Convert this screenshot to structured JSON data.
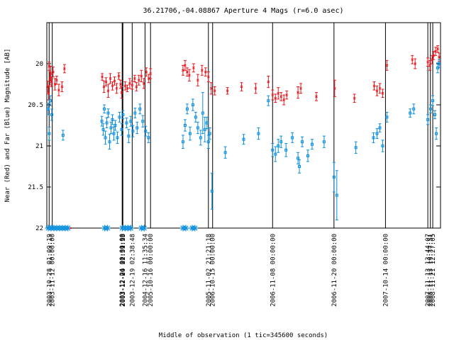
{
  "chart_data": {
    "type": "scatter",
    "title": "36.21706,-04.08867   Aperture 4 Mags (r=6.0 asec)",
    "xlabel": "Middle of observation (1 tic=345600 seconds)",
    "ylabel": "Near (Red) and Far (Blue) Magnitude [AB]",
    "x_unit": "tic",
    "xlim": [
      0,
      5580
    ],
    "ylim": [
      22,
      19.5
    ],
    "yticks": [
      20,
      20.5,
      21,
      21.5,
      22
    ],
    "ytick_labels": [
      "20",
      "20.5",
      "21",
      "21.5",
      "22"
    ],
    "grid": false,
    "vertical_lines": [
      {
        "x": 33,
        "label": "2003-10-28 01:09:19"
      },
      {
        "x": 77,
        "label": "2003-11-12 00:00:00"
      },
      {
        "x": 1068,
        "label": "2003-12-24 00:00:00"
      },
      {
        "x": 1074,
        "label": "2003-12-24 01:31:16"
      },
      {
        "x": 1078,
        "label": "2003-12-09 22:59:53"
      },
      {
        "x": 1210,
        "label": "2003-12-19 02:38:48"
      },
      {
        "x": 1392,
        "label": "2004-12-16 11:35:34"
      },
      {
        "x": 1470,
        "label": "2005-10-16 00:00:00"
      },
      {
        "x": 2290,
        "label": "2005-11-02 21:21:18"
      },
      {
        "x": 2350,
        "label": "2006-10-15 00:00:00"
      },
      {
        "x": 3200,
        "label": "2006-11-08 00:00:00"
      },
      {
        "x": 4070,
        "label": "2006-11-20 00:00:00"
      },
      {
        "x": 4800,
        "label": "2007-10-14 00:00:00"
      },
      {
        "x": 5400,
        "label": "2007-11-13 13:44:07"
      },
      {
        "x": 5436,
        "label": "2008-11-13 19:37:51"
      },
      {
        "x": 5470,
        "label": "2008-11-21 12:27:05"
      }
    ],
    "series": [
      {
        "name": "Near",
        "color": "#e8151b",
        "marker": "x",
        "points": [
          {
            "x": 15,
            "y": 20.28,
            "e": 0.07
          },
          {
            "x": 25,
            "y": 20.36,
            "e": 0.08
          },
          {
            "x": 33,
            "y": 20.03,
            "e": 0.05
          },
          {
            "x": 45,
            "y": 20.18,
            "e": 0.08
          },
          {
            "x": 55,
            "y": 20.12,
            "e": 0.09
          },
          {
            "x": 68,
            "y": 20.22,
            "e": 0.06
          },
          {
            "x": 90,
            "y": 20.1,
            "e": 0.06
          },
          {
            "x": 115,
            "y": 20.25,
            "e": 0.07
          },
          {
            "x": 140,
            "y": 20.2,
            "e": 0.05
          },
          {
            "x": 170,
            "y": 20.32,
            "e": 0.07
          },
          {
            "x": 215,
            "y": 20.28,
            "e": 0.06
          },
          {
            "x": 250,
            "y": 20.06,
            "e": 0.05
          },
          {
            "x": 785,
            "y": 20.16,
            "e": 0.04
          },
          {
            "x": 810,
            "y": 20.28,
            "e": 0.07
          },
          {
            "x": 840,
            "y": 20.22,
            "e": 0.05
          },
          {
            "x": 870,
            "y": 20.33,
            "e": 0.08
          },
          {
            "x": 900,
            "y": 20.18,
            "e": 0.06
          },
          {
            "x": 930,
            "y": 20.27,
            "e": 0.05
          },
          {
            "x": 960,
            "y": 20.21,
            "e": 0.05
          },
          {
            "x": 990,
            "y": 20.3,
            "e": 0.06
          },
          {
            "x": 1020,
            "y": 20.15,
            "e": 0.04
          },
          {
            "x": 1045,
            "y": 20.25,
            "e": 0.05
          },
          {
            "x": 1060,
            "y": 20.35,
            "e": 0.07
          },
          {
            "x": 1110,
            "y": 20.27,
            "e": 0.05
          },
          {
            "x": 1140,
            "y": 20.3,
            "e": 0.04
          },
          {
            "x": 1175,
            "y": 20.24,
            "e": 0.06
          },
          {
            "x": 1210,
            "y": 20.26,
            "e": 0.05
          },
          {
            "x": 1245,
            "y": 20.18,
            "e": 0.04
          },
          {
            "x": 1270,
            "y": 20.28,
            "e": 0.05
          },
          {
            "x": 1305,
            "y": 20.2,
            "e": 0.06
          },
          {
            "x": 1340,
            "y": 20.15,
            "e": 0.07
          },
          {
            "x": 1375,
            "y": 20.24,
            "e": 0.06
          },
          {
            "x": 1410,
            "y": 20.1,
            "e": 0.05
          },
          {
            "x": 1445,
            "y": 20.18,
            "e": 0.05
          },
          {
            "x": 1470,
            "y": 20.12,
            "e": 0.06
          },
          {
            "x": 1930,
            "y": 20.08,
            "e": 0.06
          },
          {
            "x": 1960,
            "y": 20.02,
            "e": 0.06
          },
          {
            "x": 1990,
            "y": 20.1,
            "e": 0.05
          },
          {
            "x": 2020,
            "y": 20.14,
            "e": 0.07
          },
          {
            "x": 2080,
            "y": 20.05,
            "e": 0.05
          },
          {
            "x": 2140,
            "y": 20.2,
            "e": 0.07
          },
          {
            "x": 2200,
            "y": 20.08,
            "e": 0.06
          },
          {
            "x": 2250,
            "y": 20.1,
            "e": 0.05
          },
          {
            "x": 2290,
            "y": 20.16,
            "e": 0.06
          },
          {
            "x": 2330,
            "y": 20.3,
            "e": 0.07
          },
          {
            "x": 2380,
            "y": 20.33,
            "e": 0.05
          },
          {
            "x": 2560,
            "y": 20.33,
            "e": 0.04
          },
          {
            "x": 2760,
            "y": 20.28,
            "e": 0.05
          },
          {
            "x": 2960,
            "y": 20.3,
            "e": 0.06
          },
          {
            "x": 3140,
            "y": 20.22,
            "e": 0.07
          },
          {
            "x": 3200,
            "y": 20.38,
            "e": 0.06
          },
          {
            "x": 3240,
            "y": 20.42,
            "e": 0.05
          },
          {
            "x": 3280,
            "y": 20.36,
            "e": 0.07
          },
          {
            "x": 3320,
            "y": 20.4,
            "e": 0.05
          },
          {
            "x": 3360,
            "y": 20.44,
            "e": 0.06
          },
          {
            "x": 3400,
            "y": 20.38,
            "e": 0.05
          },
          {
            "x": 3560,
            "y": 20.35,
            "e": 0.07
          },
          {
            "x": 3600,
            "y": 20.3,
            "e": 0.06
          },
          {
            "x": 3820,
            "y": 20.4,
            "e": 0.05
          },
          {
            "x": 4080,
            "y": 20.3,
            "e": 0.1
          },
          {
            "x": 4360,
            "y": 20.42,
            "e": 0.05
          },
          {
            "x": 4640,
            "y": 20.27,
            "e": 0.05
          },
          {
            "x": 4680,
            "y": 20.33,
            "e": 0.06
          },
          {
            "x": 4720,
            "y": 20.3,
            "e": 0.06
          },
          {
            "x": 4760,
            "y": 20.36,
            "e": 0.05
          },
          {
            "x": 4820,
            "y": 20.02,
            "e": 0.06
          },
          {
            "x": 5180,
            "y": 19.95,
            "e": 0.05
          },
          {
            "x": 5220,
            "y": 20.0,
            "e": 0.06
          },
          {
            "x": 5400,
            "y": 19.98,
            "e": 0.05
          },
          {
            "x": 5430,
            "y": 20.02,
            "e": 0.06
          },
          {
            "x": 5460,
            "y": 19.95,
            "e": 0.05
          },
          {
            "x": 5480,
            "y": 19.9,
            "e": 0.05
          },
          {
            "x": 5510,
            "y": 19.85,
            "e": 0.05
          },
          {
            "x": 5540,
            "y": 19.82,
            "e": 0.04
          },
          {
            "x": 5560,
            "y": 19.92,
            "e": 0.05
          }
        ]
      },
      {
        "name": "Far",
        "color": "#0c8fdc",
        "marker": "square",
        "points": [
          {
            "x": 20,
            "y": 20.55,
            "e": 0.07
          },
          {
            "x": 35,
            "y": 20.85,
            "e": 0.08
          },
          {
            "x": 50,
            "y": 20.45,
            "e": 0.06
          },
          {
            "x": 70,
            "y": 20.62,
            "e": 0.07
          },
          {
            "x": 230,
            "y": 20.87,
            "e": 0.06
          },
          {
            "x": 780,
            "y": 20.7,
            "e": 0.06
          },
          {
            "x": 800,
            "y": 20.8,
            "e": 0.07
          },
          {
            "x": 815,
            "y": 20.55,
            "e": 0.05
          },
          {
            "x": 830,
            "y": 20.9,
            "e": 0.08
          },
          {
            "x": 850,
            "y": 20.72,
            "e": 0.06
          },
          {
            "x": 870,
            "y": 20.6,
            "e": 0.05
          },
          {
            "x": 890,
            "y": 20.95,
            "e": 0.09
          },
          {
            "x": 910,
            "y": 20.78,
            "e": 0.07
          },
          {
            "x": 930,
            "y": 20.68,
            "e": 0.06
          },
          {
            "x": 950,
            "y": 20.85,
            "e": 0.08
          },
          {
            "x": 970,
            "y": 20.75,
            "e": 0.06
          },
          {
            "x": 1000,
            "y": 20.9,
            "e": 0.07
          },
          {
            "x": 1030,
            "y": 20.65,
            "e": 0.06
          },
          {
            "x": 1060,
            "y": 20.8,
            "e": 0.07
          },
          {
            "x": 1080,
            "y": 20.62,
            "e": 0.05
          },
          {
            "x": 1130,
            "y": 20.72,
            "e": 0.06
          },
          {
            "x": 1160,
            "y": 20.88,
            "e": 0.08
          },
          {
            "x": 1190,
            "y": 20.7,
            "e": 0.06
          },
          {
            "x": 1220,
            "y": 20.82,
            "e": 0.07
          },
          {
            "x": 1250,
            "y": 20.6,
            "e": 0.06
          },
          {
            "x": 1280,
            "y": 20.78,
            "e": 0.07
          },
          {
            "x": 1320,
            "y": 20.55,
            "e": 0.06
          },
          {
            "x": 1360,
            "y": 20.7,
            "e": 0.07
          },
          {
            "x": 1400,
            "y": 20.82,
            "e": 0.06
          },
          {
            "x": 1440,
            "y": 20.9,
            "e": 0.06
          },
          {
            "x": 1930,
            "y": 20.95,
            "e": 0.08
          },
          {
            "x": 1960,
            "y": 20.75,
            "e": 0.07
          },
          {
            "x": 1990,
            "y": 20.55,
            "e": 0.06
          },
          {
            "x": 2030,
            "y": 20.85,
            "e": 0.08
          },
          {
            "x": 2070,
            "y": 20.5,
            "e": 0.07
          },
          {
            "x": 2110,
            "y": 20.65,
            "e": 0.06
          },
          {
            "x": 2140,
            "y": 20.78,
            "e": 0.07
          },
          {
            "x": 2180,
            "y": 20.9,
            "e": 0.09
          },
          {
            "x": 2210,
            "y": 20.6,
            "e": 0.25
          },
          {
            "x": 2240,
            "y": 20.8,
            "e": 0.15
          },
          {
            "x": 2270,
            "y": 20.72,
            "e": 0.07
          },
          {
            "x": 2290,
            "y": 20.95,
            "e": 0.08
          },
          {
            "x": 2310,
            "y": 20.85,
            "e": 0.07
          },
          {
            "x": 2340,
            "y": 21.55,
            "e": 0.22
          },
          {
            "x": 2530,
            "y": 21.08,
            "e": 0.07
          },
          {
            "x": 2790,
            "y": 20.92,
            "e": 0.06
          },
          {
            "x": 3000,
            "y": 20.85,
            "e": 0.07
          },
          {
            "x": 3140,
            "y": 20.45,
            "e": 0.06
          },
          {
            "x": 3200,
            "y": 21.05,
            "e": 0.08
          },
          {
            "x": 3240,
            "y": 21.1,
            "e": 0.09
          },
          {
            "x": 3280,
            "y": 21.0,
            "e": 0.08
          },
          {
            "x": 3320,
            "y": 20.95,
            "e": 0.07
          },
          {
            "x": 3390,
            "y": 21.05,
            "e": 0.08
          },
          {
            "x": 3480,
            "y": 20.9,
            "e": 0.06
          },
          {
            "x": 3560,
            "y": 21.15,
            "e": 0.07
          },
          {
            "x": 3580,
            "y": 21.25,
            "e": 0.08
          },
          {
            "x": 3620,
            "y": 20.95,
            "e": 0.06
          },
          {
            "x": 3700,
            "y": 21.12,
            "e": 0.07
          },
          {
            "x": 3760,
            "y": 20.98,
            "e": 0.06
          },
          {
            "x": 3930,
            "y": 20.95,
            "e": 0.07
          },
          {
            "x": 4070,
            "y": 21.38,
            "e": 0.18
          },
          {
            "x": 4110,
            "y": 21.6,
            "e": 0.3
          },
          {
            "x": 4380,
            "y": 21.02,
            "e": 0.07
          },
          {
            "x": 4630,
            "y": 20.9,
            "e": 0.06
          },
          {
            "x": 4680,
            "y": 20.85,
            "e": 0.06
          },
          {
            "x": 4720,
            "y": 20.78,
            "e": 0.05
          },
          {
            "x": 4760,
            "y": 21.0,
            "e": 0.07
          },
          {
            "x": 4820,
            "y": 20.65,
            "e": 0.06
          },
          {
            "x": 5150,
            "y": 20.6,
            "e": 0.05
          },
          {
            "x": 5200,
            "y": 20.55,
            "e": 0.06
          },
          {
            "x": 5400,
            "y": 20.68,
            "e": 0.06
          },
          {
            "x": 5440,
            "y": 20.55,
            "e": 0.05
          },
          {
            "x": 5470,
            "y": 20.45,
            "e": 0.06
          },
          {
            "x": 5500,
            "y": 20.62,
            "e": 0.05
          },
          {
            "x": 5520,
            "y": 20.85,
            "e": 0.07
          },
          {
            "x": 5540,
            "y": 20.05,
            "e": 0.06
          },
          {
            "x": 5560,
            "y": 20.0,
            "e": 0.05
          }
        ]
      }
    ],
    "baseline_markers": [
      {
        "x": 20,
        "color": "#0c8fdc"
      },
      {
        "x": 60,
        "color": "#0c8fdc"
      },
      {
        "x": 100,
        "color": "#0c8fdc"
      },
      {
        "x": 140,
        "color": "#0c8fdc"
      },
      {
        "x": 180,
        "color": "#0c8fdc"
      },
      {
        "x": 220,
        "color": "#0c8fdc"
      },
      {
        "x": 260,
        "color": "#0c8fdc"
      },
      {
        "x": 300,
        "color": "#0c8fdc"
      },
      {
        "x": 340,
        "color": "#e8151b"
      },
      {
        "x": 820,
        "color": "#0c8fdc"
      },
      {
        "x": 860,
        "color": "#0c8fdc"
      },
      {
        "x": 1070,
        "color": "#0c8fdc"
      },
      {
        "x": 1110,
        "color": "#0c8fdc"
      },
      {
        "x": 1150,
        "color": "#0c8fdc"
      },
      {
        "x": 1190,
        "color": "#0c8fdc"
      },
      {
        "x": 1340,
        "color": "#0c8fdc"
      },
      {
        "x": 1380,
        "color": "#0c8fdc"
      },
      {
        "x": 1930,
        "color": "#0c8fdc"
      },
      {
        "x": 1970,
        "color": "#0c8fdc"
      },
      {
        "x": 2060,
        "color": "#0c8fdc"
      },
      {
        "x": 2100,
        "color": "#0c8fdc"
      }
    ]
  }
}
